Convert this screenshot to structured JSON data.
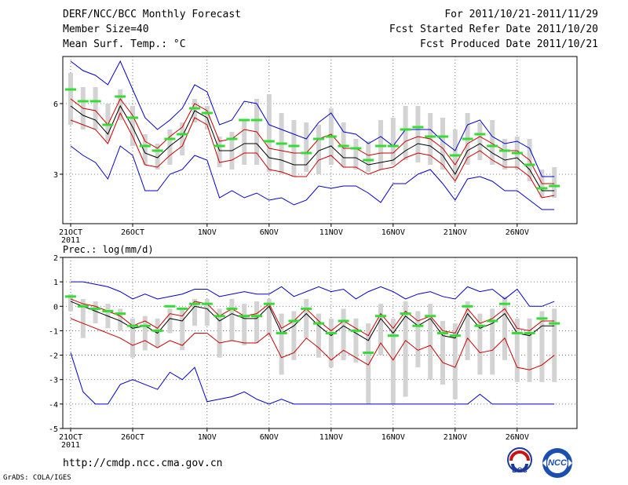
{
  "header": {
    "title": "DERF/NCC/BCC Monthly Forecast",
    "member_size": "Member Size=40",
    "variable": "Mean Surf. Temp.: °C",
    "for_period": "For 2011/10/21-2011/11/29",
    "fcst_started": "Fcst Started Refer Date 2011/10/20",
    "fcst_produced": "Fcst Produced Date 2011/10/21"
  },
  "footer": {
    "url": "http://cmdp.ncc.cma.gov.cn",
    "grads": "GrADS: COLA/IGES",
    "logo_bcc": "BCC",
    "logo_ncc": "NCC"
  },
  "colors": {
    "envelope": "#0000cc",
    "spread": "#cc0000",
    "mean": "#000000",
    "box": "#d3d3d3",
    "marker": "#33dd33"
  },
  "chart_data": [
    {
      "type": "line",
      "name": "temp-panel",
      "title": "",
      "ylabel": "Mean Surf. Temp.: °C",
      "ylim": [
        0.9,
        8.0
      ],
      "yticks": [
        3,
        6
      ],
      "x_tick_labels": [
        "21OCT",
        "26OCT",
        "1NOV",
        "6NOV",
        "11NOV",
        "16NOV",
        "21NOV",
        "26NOV"
      ],
      "x_tick_index": [
        0,
        5,
        11,
        16,
        21,
        26,
        31,
        36
      ],
      "x_year_label": "2011",
      "days": 40,
      "series": [
        {
          "name": "max",
          "values": [
            4.2,
            3.8,
            3.5,
            2.8,
            4.2,
            3.8,
            2.3,
            2.3,
            3.0,
            3.2,
            3.8,
            3.6,
            2.0,
            2.3,
            2.0,
            2.2,
            1.9,
            2.0,
            1.7,
            1.9,
            2.5,
            2.4,
            2.5,
            2.5,
            2.2,
            1.8,
            2.6,
            2.6,
            3.0,
            3.2,
            2.6,
            1.9,
            2.8,
            2.9,
            2.7,
            2.3,
            2.3,
            1.9,
            1.5,
            1.5
          ]
        },
        {
          "name": "max_high",
          "values": [
            7.8,
            7.4,
            7.2,
            6.8,
            7.8,
            6.6,
            5.4,
            4.9,
            5.3,
            5.8,
            6.8,
            6.5,
            5.1,
            5.3,
            6.1,
            6.0,
            5.1,
            4.9,
            4.7,
            4.5,
            5.2,
            5.6,
            4.8,
            4.7,
            4.3,
            4.6,
            4.2,
            4.9,
            4.9,
            4.9,
            4.4,
            4.0,
            5.1,
            5.3,
            4.6,
            4.3,
            4.4,
            4.1,
            2.9,
            2.9
          ]
        },
        {
          "name": "upper_red",
          "values": [
            6.2,
            5.8,
            5.7,
            5.1,
            6.2,
            5.5,
            4.4,
            4.1,
            4.6,
            5.0,
            6.0,
            5.7,
            4.4,
            4.5,
            4.9,
            4.8,
            4.1,
            4.0,
            3.9,
            3.9,
            4.5,
            4.7,
            4.1,
            4.1,
            3.8,
            3.9,
            3.9,
            4.4,
            4.6,
            4.5,
            4.1,
            3.4,
            4.3,
            4.6,
            4.3,
            4.0,
            4.0,
            3.6,
            2.6,
            2.6
          ]
        },
        {
          "name": "mean",
          "values": [
            5.9,
            5.5,
            5.3,
            4.7,
            5.9,
            5.0,
            3.9,
            3.7,
            4.2,
            4.6,
            5.7,
            5.4,
            4.0,
            4.0,
            4.3,
            4.3,
            3.7,
            3.6,
            3.4,
            3.4,
            4.0,
            4.2,
            3.7,
            3.7,
            3.4,
            3.5,
            3.6,
            4.0,
            4.3,
            4.2,
            3.8,
            3.0,
            4.0,
            4.3,
            3.9,
            3.6,
            3.7,
            3.2,
            2.3,
            2.3
          ]
        },
        {
          "name": "lower_red",
          "values": [
            5.3,
            5.1,
            4.9,
            4.3,
            5.6,
            4.6,
            3.4,
            3.3,
            3.8,
            4.2,
            5.4,
            5.1,
            3.5,
            3.6,
            3.9,
            3.9,
            3.2,
            3.1,
            2.9,
            2.9,
            3.6,
            3.8,
            3.3,
            3.3,
            3.0,
            3.2,
            3.3,
            3.7,
            3.9,
            3.8,
            3.4,
            2.7,
            3.7,
            4.0,
            3.6,
            3.3,
            3.3,
            2.9,
            2.0,
            2.1
          ]
        },
        {
          "name": "box_top",
          "values": [
            7.3,
            6.7,
            6.7,
            6.0,
            6.6,
            5.9,
            4.7,
            4.3,
            4.9,
            5.2,
            6.2,
            5.9,
            4.6,
            4.8,
            5.3,
            6.2,
            6.4,
            5.6,
            5.3,
            5.2,
            5.1,
            5.8,
            5.2,
            4.5,
            4.4,
            5.3,
            5.4,
            5.9,
            5.9,
            5.6,
            5.4,
            4.9,
            5.6,
            5.2,
            5.3,
            4.5,
            4.6,
            4.5,
            3.2,
            3.3
          ]
        },
        {
          "name": "box_bottom",
          "values": [
            5.1,
            4.9,
            4.9,
            4.4,
            5.3,
            4.2,
            3.4,
            3.2,
            3.4,
            3.8,
            5.2,
            4.9,
            3.3,
            3.2,
            3.4,
            3.4,
            3.1,
            3.0,
            2.9,
            3.1,
            3.0,
            3.4,
            3.3,
            3.2,
            3.1,
            3.2,
            3.4,
            3.6,
            3.5,
            3.4,
            3.2,
            2.8,
            3.4,
            3.6,
            3.4,
            3.2,
            3.2,
            2.7,
            2.0,
            2.0
          ]
        },
        {
          "name": "forecast",
          "values": [
            6.6,
            6.1,
            6.1,
            5.1,
            6.3,
            5.4,
            4.2,
            4.0,
            4.5,
            4.7,
            5.8,
            5.6,
            4.2,
            4.5,
            5.3,
            5.3,
            4.4,
            4.3,
            4.2,
            3.9,
            4.5,
            4.6,
            4.2,
            4.1,
            3.6,
            4.2,
            4.2,
            4.9,
            5.0,
            4.6,
            4.6,
            3.8,
            4.5,
            4.7,
            4.2,
            4.0,
            3.9,
            3.4,
            2.4,
            2.5
          ]
        }
      ]
    },
    {
      "type": "line",
      "name": "precip-panel",
      "title": "",
      "ylabel": "Prec.: log(mm/d)",
      "ylim": [
        -5,
        2
      ],
      "yticks": [
        -5,
        -4,
        -3,
        -2,
        -1,
        0,
        1,
        2
      ],
      "x_tick_labels": [
        "21OCT",
        "26OCT",
        "1NOV",
        "6NOV",
        "11NOV",
        "16NOV",
        "21NOV",
        "26NOV"
      ],
      "x_tick_index": [
        0,
        5,
        11,
        16,
        21,
        26,
        31,
        36
      ],
      "x_year_label": "2011",
      "days": 40,
      "series": [
        {
          "name": "max",
          "values": [
            1.0,
            1.0,
            0.9,
            0.8,
            0.6,
            0.3,
            0.5,
            0.3,
            0.4,
            0.5,
            0.7,
            0.7,
            0.4,
            0.5,
            0.6,
            0.5,
            0.5,
            0.8,
            0.4,
            0.6,
            0.8,
            0.6,
            0.7,
            0.3,
            0.6,
            0.8,
            0.6,
            0.3,
            0.5,
            0.6,
            0.4,
            0.3,
            0.8,
            0.6,
            0.7,
            0.3,
            0.7,
            0.0,
            0.0,
            0.2
          ]
        },
        {
          "name": "min",
          "values": [
            -1.9,
            -3.5,
            -4.0,
            -4.0,
            -3.2,
            -3.0,
            -3.2,
            -3.4,
            -2.7,
            -3.0,
            -2.5,
            -3.9,
            -3.8,
            -3.7,
            -3.5,
            -3.8,
            -4.0,
            -3.8,
            -4.0,
            -4.0,
            -4.0,
            -4.0,
            -4.0,
            -4.0,
            -4.0,
            -4.0,
            -4.0,
            -4.0,
            -4.0,
            -4.0,
            -4.0,
            -4.0,
            -4.0,
            -3.6,
            -4.0,
            -4.0,
            -4.0,
            -4.0,
            -4.0,
            -4.0
          ]
        },
        {
          "name": "upper_red",
          "values": [
            0.3,
            0.1,
            0.0,
            -0.2,
            -0.4,
            -0.8,
            -0.6,
            -0.9,
            -0.3,
            -0.4,
            0.2,
            0.1,
            -0.4,
            -0.1,
            -0.4,
            -0.3,
            0.1,
            -0.9,
            -0.6,
            -0.1,
            -0.6,
            -1.0,
            -0.6,
            -0.9,
            -1.2,
            -0.3,
            -0.9,
            -0.2,
            -0.6,
            -0.4,
            -1.0,
            -1.1,
            -0.1,
            -0.7,
            -0.5,
            -0.1,
            -0.9,
            -1.0,
            -0.6,
            -0.6
          ]
        },
        {
          "name": "mean",
          "values": [
            0.2,
            0.0,
            -0.2,
            -0.4,
            -0.6,
            -0.9,
            -0.8,
            -1.1,
            -0.5,
            -0.6,
            0.0,
            -0.1,
            -0.6,
            -0.3,
            -0.5,
            -0.5,
            0.0,
            -1.1,
            -0.8,
            -0.3,
            -0.8,
            -1.2,
            -0.8,
            -1.1,
            -1.4,
            -0.5,
            -1.1,
            -0.4,
            -0.8,
            -0.5,
            -1.2,
            -1.3,
            -0.3,
            -0.9,
            -0.7,
            -0.3,
            -1.1,
            -1.2,
            -0.8,
            -0.8
          ]
        },
        {
          "name": "lower_red",
          "values": [
            -0.5,
            -0.7,
            -0.9,
            -1.1,
            -1.3,
            -1.6,
            -1.4,
            -1.7,
            -1.4,
            -1.6,
            -1.1,
            -1.1,
            -1.5,
            -1.4,
            -1.5,
            -1.5,
            -1.1,
            -2.1,
            -1.9,
            -1.3,
            -1.7,
            -2.2,
            -1.8,
            -2.1,
            -2.4,
            -1.5,
            -2.2,
            -1.4,
            -1.8,
            -1.6,
            -2.3,
            -2.5,
            -1.3,
            -1.9,
            -1.8,
            -1.3,
            -2.5,
            -2.6,
            -2.4,
            -2.0
          ]
        },
        {
          "name": "box_top",
          "values": [
            0.5,
            0.3,
            0.2,
            0.1,
            -0.1,
            -0.5,
            -0.4,
            -0.5,
            -0.1,
            -0.1,
            0.3,
            0.3,
            -0.1,
            0.3,
            0.1,
            0.2,
            0.3,
            -0.3,
            -0.2,
            0.3,
            -0.3,
            -0.5,
            -0.1,
            -0.5,
            -0.7,
            0.1,
            -0.5,
            0.2,
            -0.2,
            0.1,
            -0.6,
            -0.7,
            0.2,
            -0.3,
            -0.1,
            0.4,
            -0.5,
            -0.5,
            -0.2,
            -0.1
          ]
        },
        {
          "name": "box_bottom",
          "values": [
            -0.2,
            -1.3,
            -0.7,
            -0.9,
            -1.0,
            -2.1,
            -1.8,
            -1.7,
            -1.1,
            -1.8,
            -0.8,
            -0.8,
            -2.1,
            -1.4,
            -1.6,
            -1.5,
            -1.2,
            -2.8,
            -2.2,
            -1.3,
            -2.1,
            -2.5,
            -2.2,
            -2.3,
            -4.0,
            -2.0,
            -4.0,
            -3.7,
            -2.5,
            -3.0,
            -3.2,
            -3.8,
            -2.2,
            -2.8,
            -2.8,
            -2.2,
            -3.1,
            -3.1,
            -3.1,
            -3.1
          ]
        },
        {
          "name": "forecast",
          "values": [
            0.4,
            0.0,
            -0.1,
            -0.2,
            -0.3,
            -0.8,
            -0.8,
            -1.0,
            0.0,
            -0.1,
            0.1,
            0.1,
            -0.4,
            -0.1,
            -0.4,
            -0.4,
            0.1,
            -1.1,
            -0.6,
            -0.1,
            -0.7,
            -1.1,
            -0.6,
            -1.0,
            -1.9,
            -0.4,
            -1.2,
            -0.3,
            -0.8,
            -0.4,
            -1.1,
            -1.2,
            0.0,
            -0.8,
            -0.6,
            0.1,
            -1.1,
            -1.1,
            -0.5,
            -0.7
          ]
        }
      ]
    }
  ]
}
